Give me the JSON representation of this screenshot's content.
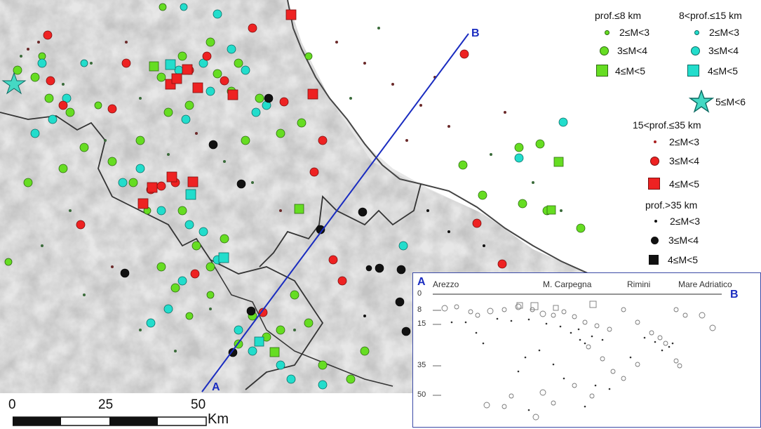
{
  "profile_labels": {
    "start": "A",
    "end": "B"
  },
  "legend": {
    "group1_title": "prof.≤8 km",
    "group2_title": "8<prof.≤15 km",
    "group3_title": "15<prof.≤35 km",
    "group4_title": "prof.>35 km",
    "mag_2_3": "2≤M<3",
    "mag_3_4": "3≤M<4",
    "mag_4_5": "4≤M<5",
    "mag_5_6": "5≤M<6",
    "colors": {
      "shallow": "#66dd22",
      "mid": "#22ddcc",
      "deep": "#ee2222",
      "very_deep": "#111111",
      "profile_line": "#1a2cc0"
    }
  },
  "inset": {
    "start_label": "A",
    "end_label": "B",
    "places": [
      "Arezzo",
      "M. Carpegna",
      "Rimini",
      "Mare Adriatico"
    ],
    "depth_ticks": [
      "0",
      "8",
      "15",
      "35",
      "50"
    ]
  },
  "scale": {
    "ticks": [
      "0",
      "25",
      "50"
    ],
    "unit": "Km"
  }
}
